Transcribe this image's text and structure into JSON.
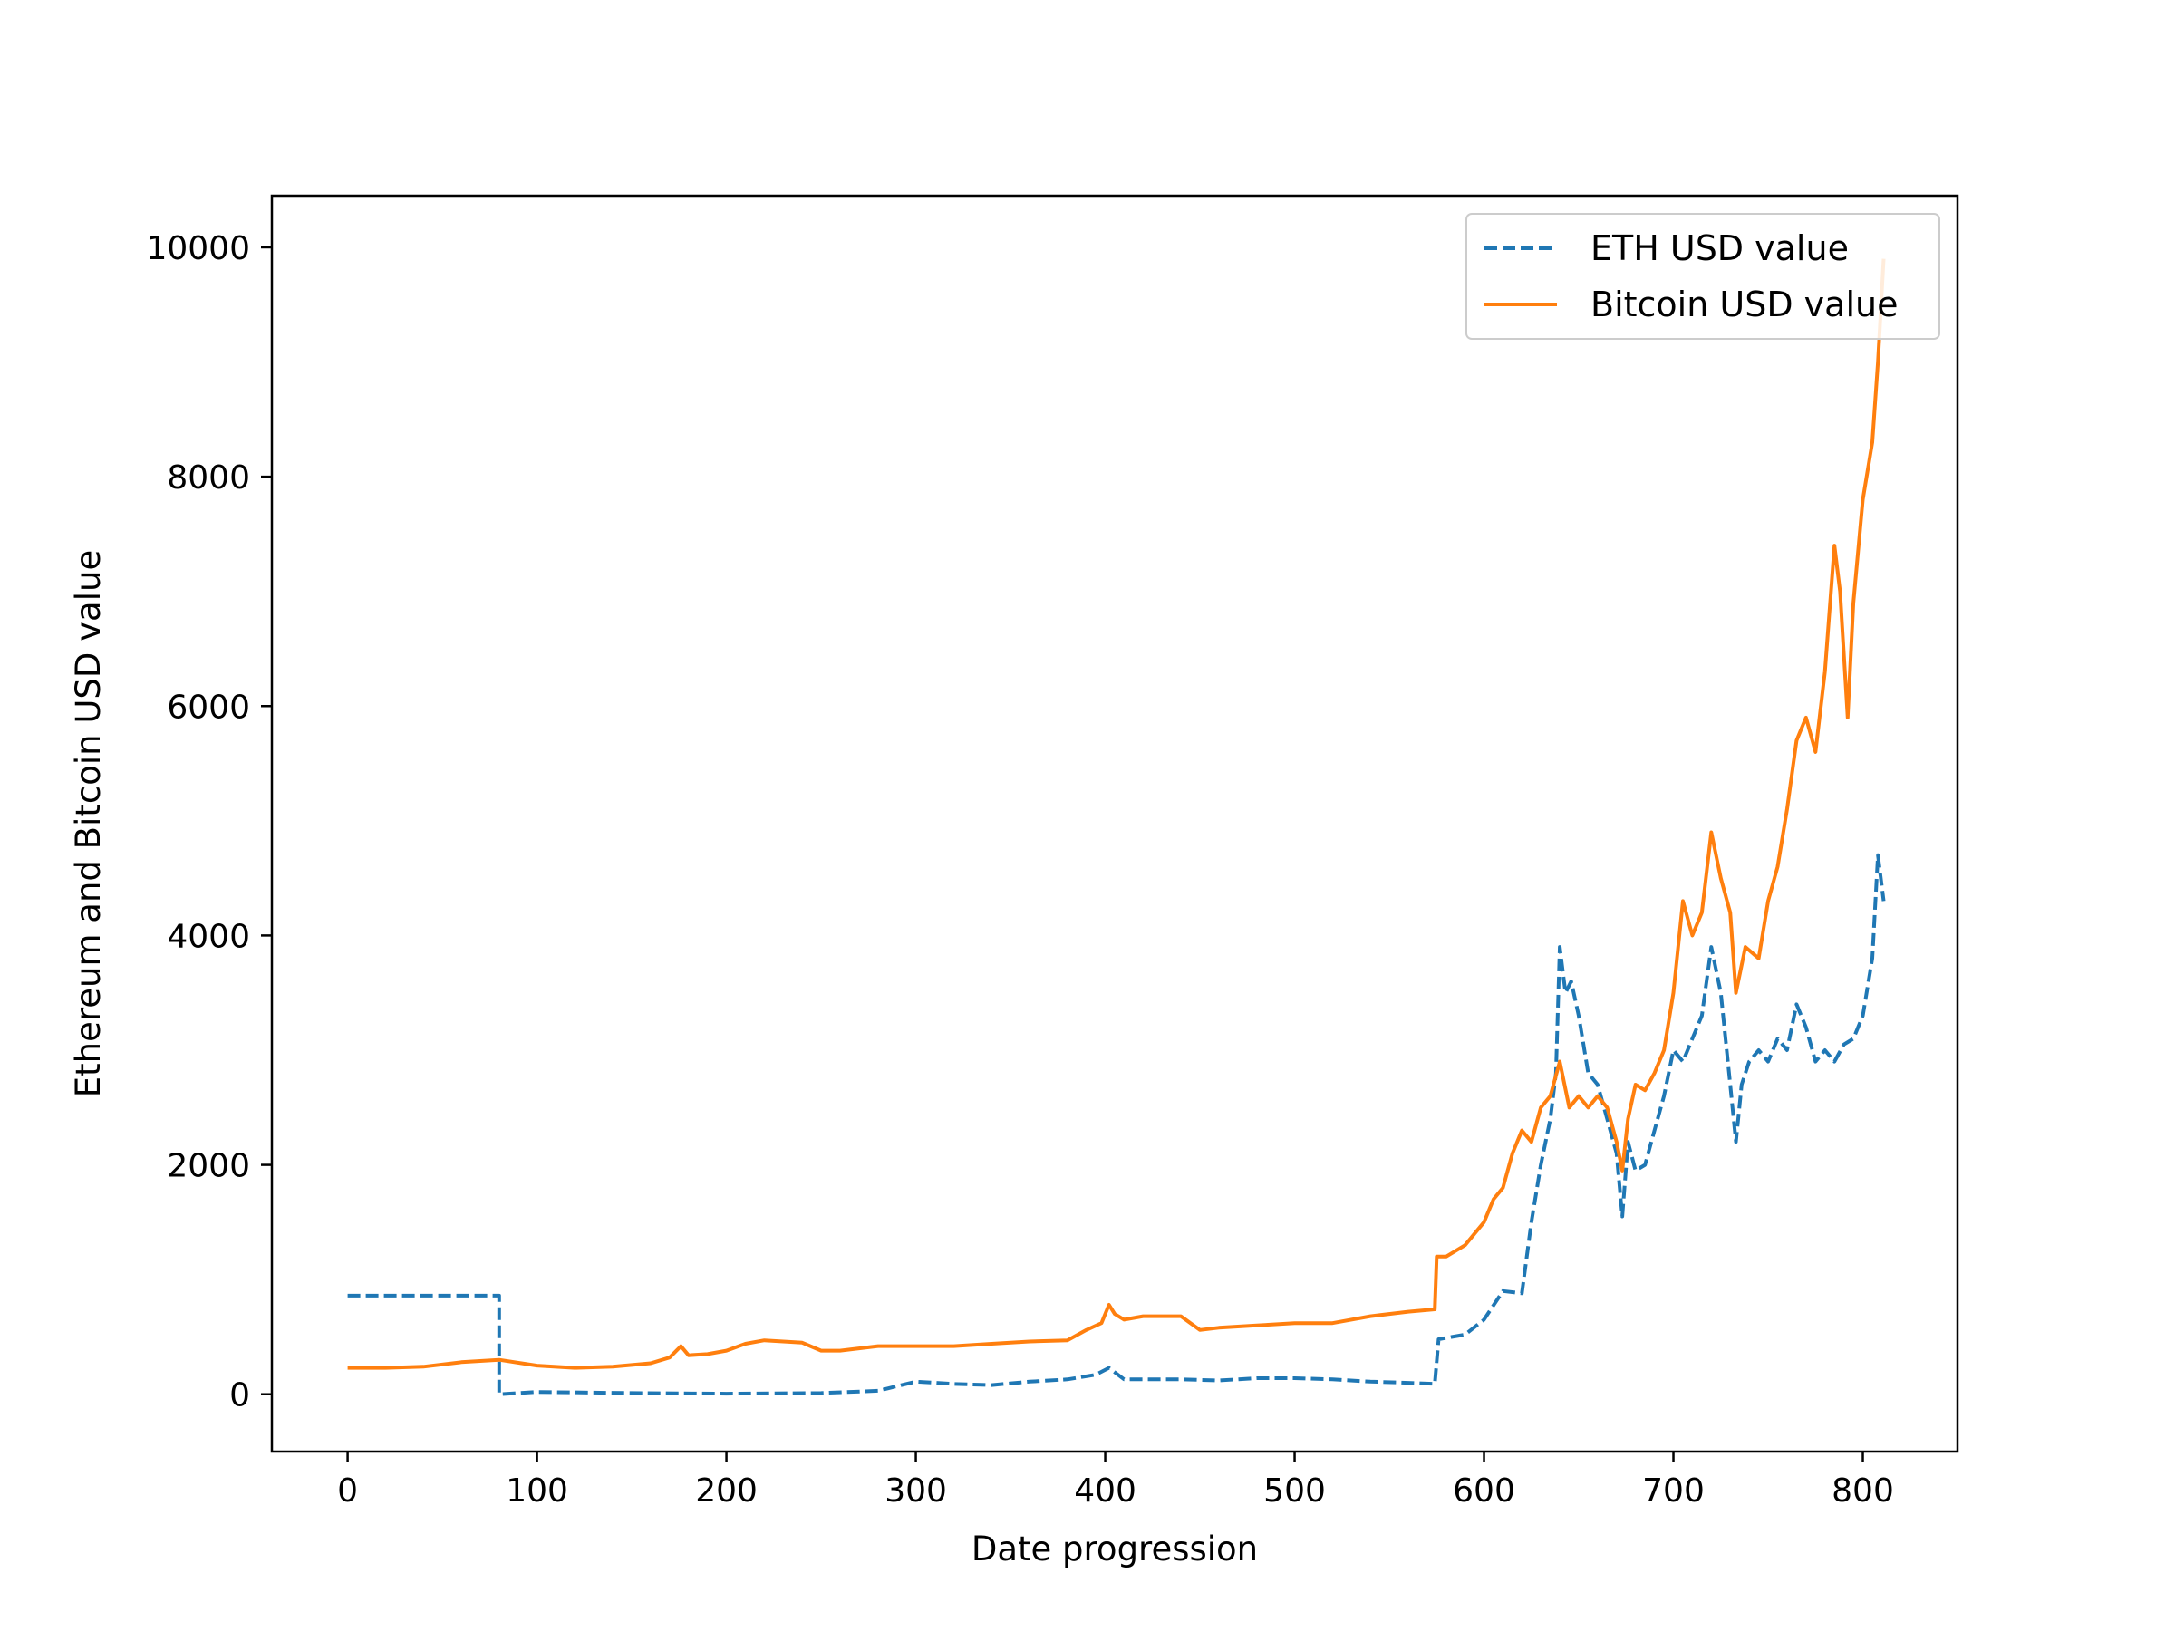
{
  "chart_data": {
    "type": "line",
    "xlabel": "Date progression",
    "ylabel": "Ethereum and Bitcoin USD value",
    "xlim": [
      -40,
      850
    ],
    "ylim": [
      -500,
      10450
    ],
    "xticks": [
      0,
      100,
      200,
      300,
      400,
      500,
      600,
      700,
      800
    ],
    "yticks": [
      0,
      2000,
      4000,
      6000,
      8000,
      10000
    ],
    "legend_position": "upper right",
    "grid": false,
    "series": [
      {
        "name": "ETH USD value",
        "color": "#1f77b4",
        "style": "dashed",
        "points": [
          [
            0,
            860
          ],
          [
            80,
            860
          ],
          [
            80,
            0
          ],
          [
            100,
            20
          ],
          [
            150,
            10
          ],
          [
            200,
            5
          ],
          [
            250,
            10
          ],
          [
            280,
            30
          ],
          [
            300,
            110
          ],
          [
            320,
            90
          ],
          [
            340,
            80
          ],
          [
            360,
            110
          ],
          [
            380,
            130
          ],
          [
            395,
            170
          ],
          [
            402,
            230
          ],
          [
            410,
            130
          ],
          [
            440,
            130
          ],
          [
            460,
            120
          ],
          [
            480,
            140
          ],
          [
            500,
            140
          ],
          [
            520,
            130
          ],
          [
            540,
            110
          ],
          [
            560,
            100
          ],
          [
            574,
            90
          ],
          [
            576,
            480
          ],
          [
            590,
            520
          ],
          [
            600,
            650
          ],
          [
            610,
            900
          ],
          [
            620,
            880
          ],
          [
            625,
            1500
          ],
          [
            630,
            2000
          ],
          [
            635,
            2400
          ],
          [
            638,
            2800
          ],
          [
            640,
            3900
          ],
          [
            643,
            3500
          ],
          [
            646,
            3600
          ],
          [
            650,
            3300
          ],
          [
            655,
            2800
          ],
          [
            660,
            2700
          ],
          [
            665,
            2400
          ],
          [
            670,
            2100
          ],
          [
            673,
            1550
          ],
          [
            676,
            2200
          ],
          [
            680,
            1950
          ],
          [
            685,
            2000
          ],
          [
            690,
            2300
          ],
          [
            695,
            2600
          ],
          [
            700,
            3000
          ],
          [
            705,
            2900
          ],
          [
            710,
            3100
          ],
          [
            715,
            3300
          ],
          [
            720,
            3900
          ],
          [
            725,
            3500
          ],
          [
            730,
            2700
          ],
          [
            733,
            2200
          ],
          [
            736,
            2700
          ],
          [
            740,
            2900
          ],
          [
            745,
            3000
          ],
          [
            750,
            2900
          ],
          [
            755,
            3100
          ],
          [
            760,
            3000
          ],
          [
            765,
            3400
          ],
          [
            770,
            3200
          ],
          [
            775,
            2900
          ],
          [
            780,
            3000
          ],
          [
            785,
            2900
          ],
          [
            790,
            3050
          ],
          [
            795,
            3100
          ],
          [
            800,
            3300
          ],
          [
            805,
            3800
          ],
          [
            808,
            4700
          ],
          [
            811,
            4300
          ]
        ]
      },
      {
        "name": "Bitcoin USD value",
        "color": "#ff7f0e",
        "style": "solid",
        "points": [
          [
            0,
            230
          ],
          [
            20,
            230
          ],
          [
            40,
            240
          ],
          [
            60,
            280
          ],
          [
            80,
            300
          ],
          [
            100,
            250
          ],
          [
            120,
            230
          ],
          [
            140,
            240
          ],
          [
            160,
            270
          ],
          [
            170,
            320
          ],
          [
            176,
            420
          ],
          [
            180,
            340
          ],
          [
            190,
            350
          ],
          [
            200,
            380
          ],
          [
            210,
            440
          ],
          [
            220,
            470
          ],
          [
            240,
            450
          ],
          [
            250,
            380
          ],
          [
            260,
            380
          ],
          [
            280,
            420
          ],
          [
            300,
            420
          ],
          [
            320,
            420
          ],
          [
            340,
            440
          ],
          [
            360,
            460
          ],
          [
            380,
            470
          ],
          [
            390,
            560
          ],
          [
            398,
            620
          ],
          [
            402,
            780
          ],
          [
            405,
            700
          ],
          [
            410,
            650
          ],
          [
            420,
            680
          ],
          [
            440,
            680
          ],
          [
            450,
            560
          ],
          [
            460,
            580
          ],
          [
            480,
            600
          ],
          [
            500,
            620
          ],
          [
            520,
            620
          ],
          [
            540,
            680
          ],
          [
            560,
            720
          ],
          [
            574,
            740
          ],
          [
            575,
            1200
          ],
          [
            580,
            1200
          ],
          [
            590,
            1300
          ],
          [
            600,
            1500
          ],
          [
            605,
            1700
          ],
          [
            610,
            1800
          ],
          [
            615,
            2100
          ],
          [
            620,
            2300
          ],
          [
            625,
            2200
          ],
          [
            630,
            2500
          ],
          [
            635,
            2600
          ],
          [
            640,
            2900
          ],
          [
            645,
            2500
          ],
          [
            650,
            2600
          ],
          [
            655,
            2500
          ],
          [
            660,
            2600
          ],
          [
            665,
            2500
          ],
          [
            670,
            2200
          ],
          [
            673,
            1950
          ],
          [
            676,
            2400
          ],
          [
            680,
            2700
          ],
          [
            685,
            2650
          ],
          [
            690,
            2800
          ],
          [
            695,
            3000
          ],
          [
            700,
            3500
          ],
          [
            705,
            4300
          ],
          [
            710,
            4000
          ],
          [
            715,
            4200
          ],
          [
            720,
            4900
          ],
          [
            725,
            4500
          ],
          [
            730,
            4200
          ],
          [
            733,
            3500
          ],
          [
            738,
            3900
          ],
          [
            745,
            3800
          ],
          [
            750,
            4300
          ],
          [
            755,
            4600
          ],
          [
            760,
            5100
          ],
          [
            765,
            5700
          ],
          [
            770,
            5900
          ],
          [
            775,
            5600
          ],
          [
            780,
            6300
          ],
          [
            785,
            7400
          ],
          [
            788,
            7000
          ],
          [
            792,
            5900
          ],
          [
            795,
            6900
          ],
          [
            800,
            7800
          ],
          [
            805,
            8300
          ],
          [
            808,
            9000
          ],
          [
            811,
            9900
          ]
        ]
      }
    ]
  }
}
